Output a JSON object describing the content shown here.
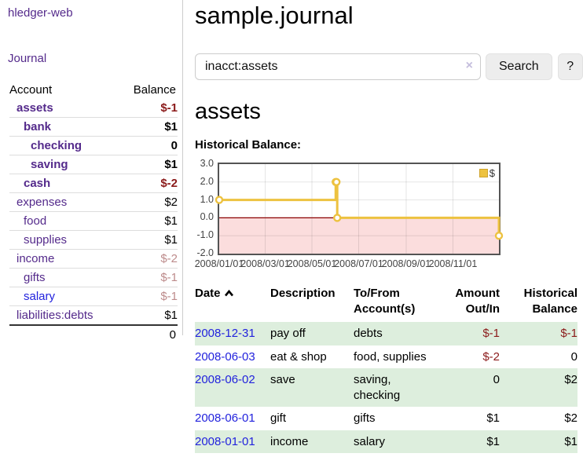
{
  "app": {
    "title": "hledger-web",
    "nav_journal": "Journal"
  },
  "sidebar": {
    "columns": {
      "account": "Account",
      "balance": "Balance"
    },
    "accounts": [
      {
        "name": "assets",
        "indent": 1,
        "bold": true,
        "balance": "$-1",
        "balance_style": "neg-strong"
      },
      {
        "name": "bank",
        "indent": 2,
        "bold": true,
        "balance": "$1",
        "balance_style": "pos"
      },
      {
        "name": "checking",
        "indent": 3,
        "bold": true,
        "balance": "0",
        "balance_style": "pos"
      },
      {
        "name": "saving",
        "indent": 3,
        "bold": true,
        "balance": "$1",
        "balance_style": "pos"
      },
      {
        "name": "cash",
        "indent": 2,
        "bold": true,
        "balance": "$-2",
        "balance_style": "neg-strong"
      },
      {
        "name": "expenses",
        "indent": 1,
        "bold": false,
        "balance": "$2",
        "balance_style": "pos"
      },
      {
        "name": "food",
        "indent": 2,
        "bold": false,
        "balance": "$1",
        "balance_style": "pos"
      },
      {
        "name": "supplies",
        "indent": 2,
        "bold": false,
        "balance": "$1",
        "balance_style": "pos"
      },
      {
        "name": "income",
        "indent": 1,
        "bold": false,
        "balance": "$-2",
        "balance_style": "neg-muted"
      },
      {
        "name": "gifts",
        "indent": 2,
        "bold": false,
        "balance": "$-1",
        "balance_style": "neg-muted"
      },
      {
        "name": "salary",
        "indent": 2,
        "bold": false,
        "link_style": "blue",
        "balance": "$-1",
        "balance_style": "neg-muted"
      },
      {
        "name": "liabilities:debts",
        "indent": 1,
        "bold": false,
        "balance": "$1",
        "balance_style": "pos"
      }
    ],
    "total": "0"
  },
  "header": {
    "title": "sample.journal"
  },
  "search": {
    "value": "inacct:assets",
    "clear_icon": "×",
    "button": "Search",
    "help_button": "?"
  },
  "account_page": {
    "heading": "assets",
    "chart_label": "Historical Balance:"
  },
  "chart_data": {
    "type": "line",
    "step": true,
    "title": "Historical Balance:",
    "series": [
      {
        "name": "$",
        "color": "#edc240",
        "points": [
          [
            "2008-01-01",
            1
          ],
          [
            "2008-06-01",
            2
          ],
          [
            "2008-06-02",
            2
          ],
          [
            "2008-06-03",
            0
          ],
          [
            "2008-12-31",
            -1
          ]
        ]
      }
    ],
    "x_range": [
      "2008-01-01",
      "2008-12-31"
    ],
    "xticks": [
      "2008/01/01",
      "2008/03/01",
      "2008/05/01",
      "2008/07/01",
      "2008/09/01",
      "2008/11/01"
    ],
    "yticks": [
      "3.0",
      "2.0",
      "1.0",
      "0.0",
      "-1.0",
      "-2.0"
    ],
    "ylim": [
      -2,
      3
    ],
    "grid": true,
    "negative_region_fill": "#fbdddd",
    "zero_line_color": "#8b0000",
    "legend_position": "top-right"
  },
  "register": {
    "columns": [
      "Date",
      "Description",
      "To/From Account(s)",
      "Amount Out/In",
      "Historical Balance"
    ],
    "rows": [
      {
        "date": "2008-12-31",
        "description": "pay off",
        "accounts": "debts",
        "amount": "$-1",
        "amount_style": "neg",
        "balance": "$-1",
        "balance_style": "neg"
      },
      {
        "date": "2008-06-03",
        "description": "eat & shop",
        "accounts": "food, supplies",
        "amount": "$-2",
        "amount_style": "neg",
        "balance": "0",
        "balance_style": "pos"
      },
      {
        "date": "2008-06-02",
        "description": "save",
        "accounts": "saving, checking",
        "amount": "0",
        "amount_style": "pos",
        "balance": "$2",
        "balance_style": "pos"
      },
      {
        "date": "2008-06-01",
        "description": "gift",
        "accounts": "gifts",
        "amount": "$1",
        "amount_style": "pos",
        "balance": "$2",
        "balance_style": "pos"
      },
      {
        "date": "2008-01-01",
        "description": "income",
        "accounts": "salary",
        "amount": "$1",
        "amount_style": "pos",
        "balance": "$1",
        "balance_style": "pos"
      }
    ]
  },
  "colors": {
    "link_purple": "#542a8b",
    "link_blue": "#2222dd",
    "negative_strong": "#8b1a1a",
    "negative_muted": "#bd8b8b",
    "row_stripe_green": "#ddeedd",
    "chart_line": "#edc240",
    "chart_negative_fill": "#fbdddd",
    "chart_zero_line": "#8b0000",
    "plot_border": "#545454"
  }
}
